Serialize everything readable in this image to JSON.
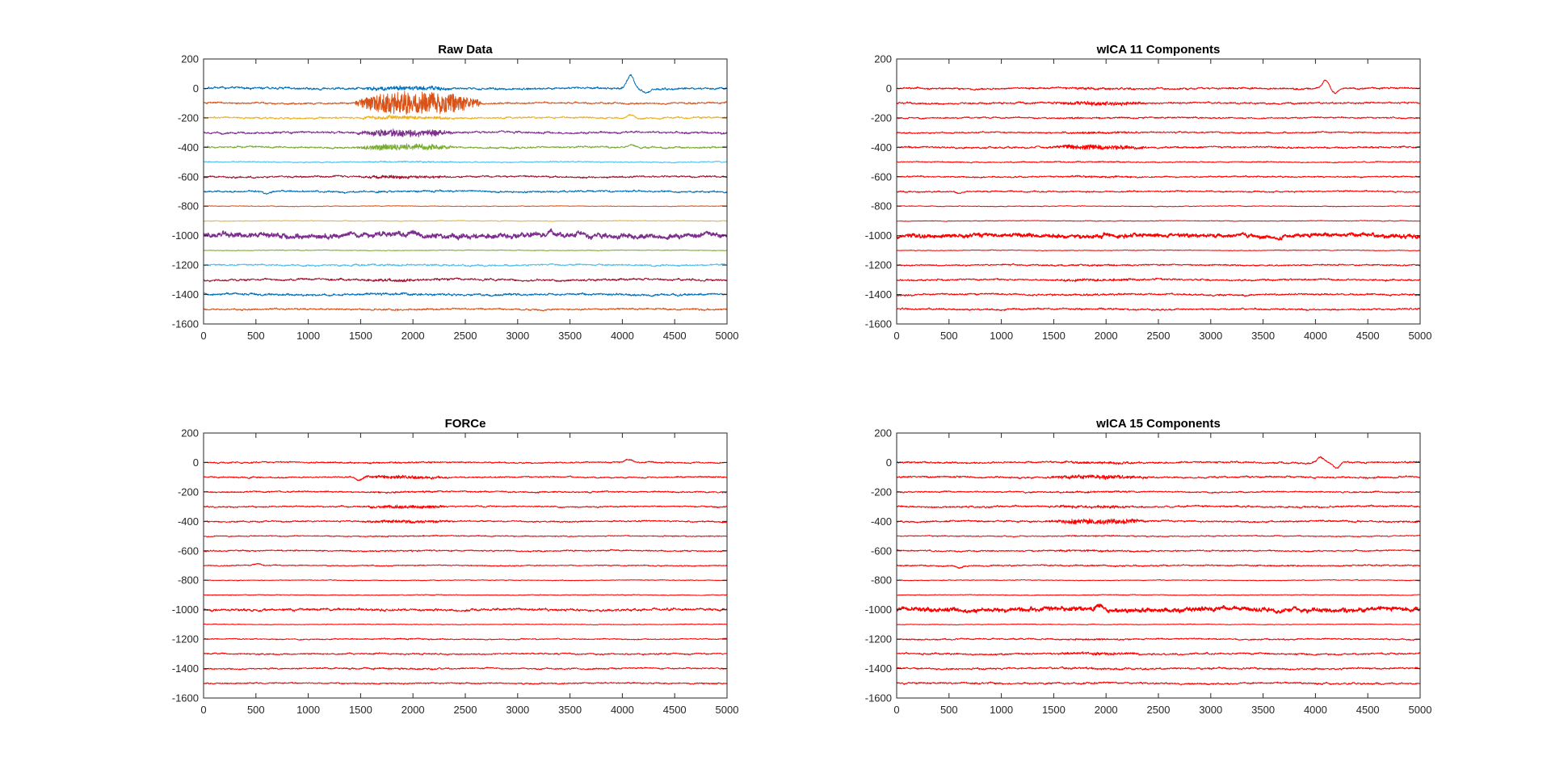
{
  "figure": {
    "background": "#ffffff",
    "axis_color": "#262626"
  },
  "chart_data": [
    {
      "type": "line",
      "title": "Raw Data",
      "xlabel": "",
      "ylabel": "",
      "xlim": [
        0,
        5000
      ],
      "ylim": [
        -1600,
        200
      ],
      "xticks": [
        0,
        500,
        1000,
        1500,
        2000,
        2500,
        3000,
        3500,
        4000,
        4500,
        5000
      ],
      "yticks": [
        200,
        0,
        -200,
        -400,
        -600,
        -800,
        -1000,
        -1200,
        -1400,
        -1600
      ],
      "grid": false,
      "n_samples": 5000,
      "colors": [
        "#0072bd",
        "#d95319",
        "#edb120",
        "#7e2f8e",
        "#77ac30",
        "#4dbeee",
        "#a2142f"
      ],
      "series": [
        {
          "offset": 0,
          "noise": 6,
          "burst_amp": 12,
          "bumps": [
            {
              "x": 4080,
              "amp": 90
            },
            {
              "x": 4230,
              "amp": -30
            }
          ]
        },
        {
          "offset": -100,
          "noise": 5,
          "burst_amp": 75,
          "burst_range": [
            1450,
            2650
          ],
          "bumps": []
        },
        {
          "offset": -200,
          "noise": 5,
          "burst_amp": 10,
          "bumps": [
            {
              "x": 4080,
              "amp": 25
            }
          ]
        },
        {
          "offset": -300,
          "noise": 6,
          "burst_amp": 22,
          "bumps": []
        },
        {
          "offset": -400,
          "noise": 5,
          "burst_amp": 18,
          "bumps": [
            {
              "x": 4080,
              "amp": 18
            }
          ]
        },
        {
          "offset": -500,
          "noise": 3,
          "burst_amp": 3,
          "bumps": []
        },
        {
          "offset": -600,
          "noise": 5,
          "burst_amp": 8,
          "bumps": []
        },
        {
          "offset": -700,
          "noise": 5,
          "burst_amp": 2,
          "bumps": [
            {
              "x": 600,
              "amp": -18
            }
          ]
        },
        {
          "offset": -800,
          "noise": 2,
          "burst_amp": 0,
          "bumps": []
        },
        {
          "offset": -900,
          "noise": 2,
          "burst_amp": 0,
          "bumps": []
        },
        {
          "offset": -1000,
          "noise": 14,
          "burst_amp": 4,
          "bumps": [
            {
              "x": 1400,
              "amp": 16
            },
            {
              "x": 2000,
              "amp": 16
            },
            {
              "x": 3300,
              "amp": 18
            },
            {
              "x": 3700,
              "amp": -18
            }
          ]
        },
        {
          "offset": -1100,
          "noise": 2,
          "burst_amp": 0,
          "bumps": []
        },
        {
          "offset": -1200,
          "noise": 5,
          "burst_amp": 3,
          "bumps": []
        },
        {
          "offset": -1300,
          "noise": 6,
          "burst_amp": 6,
          "bumps": []
        },
        {
          "offset": -1400,
          "noise": 6,
          "burst_amp": 3,
          "bumps": []
        },
        {
          "offset": -1500,
          "noise": 5,
          "burst_amp": 2,
          "bumps": []
        }
      ]
    },
    {
      "type": "line",
      "title": "wICA 11 Components",
      "xlabel": "",
      "ylabel": "",
      "xlim": [
        0,
        5000
      ],
      "ylim": [
        -1600,
        200
      ],
      "xticks": [
        0,
        500,
        1000,
        1500,
        2000,
        2500,
        3000,
        3500,
        4000,
        4500,
        5000
      ],
      "yticks": [
        200,
        0,
        -200,
        -400,
        -600,
        -800,
        -1000,
        -1200,
        -1400,
        -1600
      ],
      "grid": false,
      "n_samples": 5000,
      "colors": [
        "#ff0000"
      ],
      "series": [
        {
          "offset": 0,
          "noise": 5,
          "burst_amp": 4,
          "bumps": [
            {
              "x": 4100,
              "amp": 60
            },
            {
              "x": 4180,
              "amp": -30
            }
          ]
        },
        {
          "offset": -100,
          "noise": 5,
          "burst_amp": 10,
          "bumps": []
        },
        {
          "offset": -200,
          "noise": 4,
          "burst_amp": 3,
          "bumps": []
        },
        {
          "offset": -300,
          "noise": 4,
          "burst_amp": 5,
          "bumps": []
        },
        {
          "offset": -400,
          "noise": 5,
          "burst_amp": 14,
          "bumps": []
        },
        {
          "offset": -500,
          "noise": 3,
          "burst_amp": 2,
          "bumps": []
        },
        {
          "offset": -600,
          "noise": 4,
          "burst_amp": 3,
          "bumps": []
        },
        {
          "offset": -700,
          "noise": 4,
          "burst_amp": 2,
          "bumps": [
            {
              "x": 600,
              "amp": -14
            }
          ]
        },
        {
          "offset": -800,
          "noise": 2,
          "burst_amp": 0,
          "bumps": []
        },
        {
          "offset": -900,
          "noise": 2,
          "burst_amp": 0,
          "bumps": []
        },
        {
          "offset": -1000,
          "noise": 11,
          "burst_amp": 3,
          "bumps": [
            {
              "x": 2000,
              "amp": 16
            },
            {
              "x": 3300,
              "amp": 14
            },
            {
              "x": 3650,
              "amp": -16
            }
          ]
        },
        {
          "offset": -1100,
          "noise": 2,
          "burst_amp": 0,
          "bumps": []
        },
        {
          "offset": -1200,
          "noise": 4,
          "burst_amp": 3,
          "bumps": []
        },
        {
          "offset": -1300,
          "noise": 5,
          "burst_amp": 6,
          "bumps": []
        },
        {
          "offset": -1400,
          "noise": 5,
          "burst_amp": 3,
          "bumps": []
        },
        {
          "offset": -1500,
          "noise": 5,
          "burst_amp": 2,
          "bumps": []
        }
      ]
    },
    {
      "type": "line",
      "title": "FORCe",
      "xlabel": "",
      "ylabel": "",
      "xlim": [
        0,
        5000
      ],
      "ylim": [
        -1600,
        200
      ],
      "xticks": [
        0,
        500,
        1000,
        1500,
        2000,
        2500,
        3000,
        3500,
        4000,
        4500,
        5000
      ],
      "yticks": [
        200,
        0,
        -200,
        -400,
        -600,
        -800,
        -1000,
        -1200,
        -1400,
        -1600
      ],
      "grid": false,
      "n_samples": 5000,
      "colors": [
        "#ff0000"
      ],
      "series": [
        {
          "offset": 0,
          "noise": 4,
          "burst_amp": 2,
          "bumps": [
            {
              "x": 4060,
              "amp": 18
            }
          ]
        },
        {
          "offset": -100,
          "noise": 4,
          "burst_amp": 9,
          "bumps": [
            {
              "x": 1480,
              "amp": -20
            }
          ]
        },
        {
          "offset": -200,
          "noise": 4,
          "burst_amp": 3,
          "bumps": []
        },
        {
          "offset": -300,
          "noise": 4,
          "burst_amp": 9,
          "bumps": []
        },
        {
          "offset": -400,
          "noise": 4,
          "burst_amp": 8,
          "bumps": []
        },
        {
          "offset": -500,
          "noise": 3,
          "burst_amp": 2,
          "bumps": []
        },
        {
          "offset": -600,
          "noise": 4,
          "burst_amp": 2,
          "bumps": []
        },
        {
          "offset": -700,
          "noise": 3,
          "burst_amp": 1,
          "bumps": [
            {
              "x": 520,
              "amp": 10
            }
          ]
        },
        {
          "offset": -800,
          "noise": 2,
          "burst_amp": 0,
          "bumps": []
        },
        {
          "offset": -900,
          "noise": 2,
          "burst_amp": 0,
          "bumps": []
        },
        {
          "offset": -1000,
          "noise": 7,
          "burst_amp": 2,
          "bumps": [
            {
              "x": 2000,
              "amp": 10
            }
          ]
        },
        {
          "offset": -1100,
          "noise": 2,
          "burst_amp": 0,
          "bumps": []
        },
        {
          "offset": -1200,
          "noise": 3,
          "burst_amp": 2,
          "bumps": []
        },
        {
          "offset": -1300,
          "noise": 4,
          "burst_amp": 2,
          "bumps": []
        },
        {
          "offset": -1400,
          "noise": 4,
          "burst_amp": 2,
          "bumps": []
        },
        {
          "offset": -1500,
          "noise": 4,
          "burst_amp": 1,
          "bumps": []
        }
      ]
    },
    {
      "type": "line",
      "title": "wICA 15 Components",
      "xlabel": "",
      "ylabel": "",
      "xlim": [
        0,
        5000
      ],
      "ylim": [
        -1600,
        200
      ],
      "xticks": [
        0,
        500,
        1000,
        1500,
        2000,
        2500,
        3000,
        3500,
        4000,
        4500,
        5000
      ],
      "yticks": [
        200,
        0,
        -200,
        -400,
        -600,
        -800,
        -1000,
        -1200,
        -1400,
        -1600
      ],
      "grid": false,
      "n_samples": 5000,
      "colors": [
        "#ff0000"
      ],
      "series": [
        {
          "offset": 0,
          "noise": 5,
          "burst_amp": 5,
          "bumps": [
            {
              "x": 4050,
              "amp": 40
            },
            {
              "x": 4200,
              "amp": -35
            }
          ]
        },
        {
          "offset": -100,
          "noise": 5,
          "burst_amp": 12,
          "bumps": []
        },
        {
          "offset": -200,
          "noise": 4,
          "burst_amp": 3,
          "bumps": []
        },
        {
          "offset": -300,
          "noise": 5,
          "burst_amp": 6,
          "bumps": []
        },
        {
          "offset": -400,
          "noise": 5,
          "burst_amp": 16,
          "bumps": []
        },
        {
          "offset": -500,
          "noise": 3,
          "burst_amp": 2,
          "bumps": []
        },
        {
          "offset": -600,
          "noise": 4,
          "burst_amp": 4,
          "bumps": []
        },
        {
          "offset": -700,
          "noise": 4,
          "burst_amp": 2,
          "bumps": [
            {
              "x": 600,
              "amp": -14
            }
          ]
        },
        {
          "offset": -800,
          "noise": 2,
          "burst_amp": 0,
          "bumps": []
        },
        {
          "offset": -900,
          "noise": 2,
          "burst_amp": 0,
          "bumps": []
        },
        {
          "offset": -1000,
          "noise": 12,
          "burst_amp": 3,
          "bumps": [
            {
              "x": 1950,
              "amp": 16
            },
            {
              "x": 3250,
              "amp": 18
            },
            {
              "x": 3650,
              "amp": -20
            }
          ]
        },
        {
          "offset": -1100,
          "noise": 2,
          "burst_amp": 0,
          "bumps": []
        },
        {
          "offset": -1200,
          "noise": 4,
          "burst_amp": 3,
          "bumps": []
        },
        {
          "offset": -1300,
          "noise": 5,
          "burst_amp": 7,
          "bumps": []
        },
        {
          "offset": -1400,
          "noise": 5,
          "burst_amp": 3,
          "bumps": []
        },
        {
          "offset": -1500,
          "noise": 5,
          "burst_amp": 2,
          "bumps": []
        }
      ]
    }
  ]
}
